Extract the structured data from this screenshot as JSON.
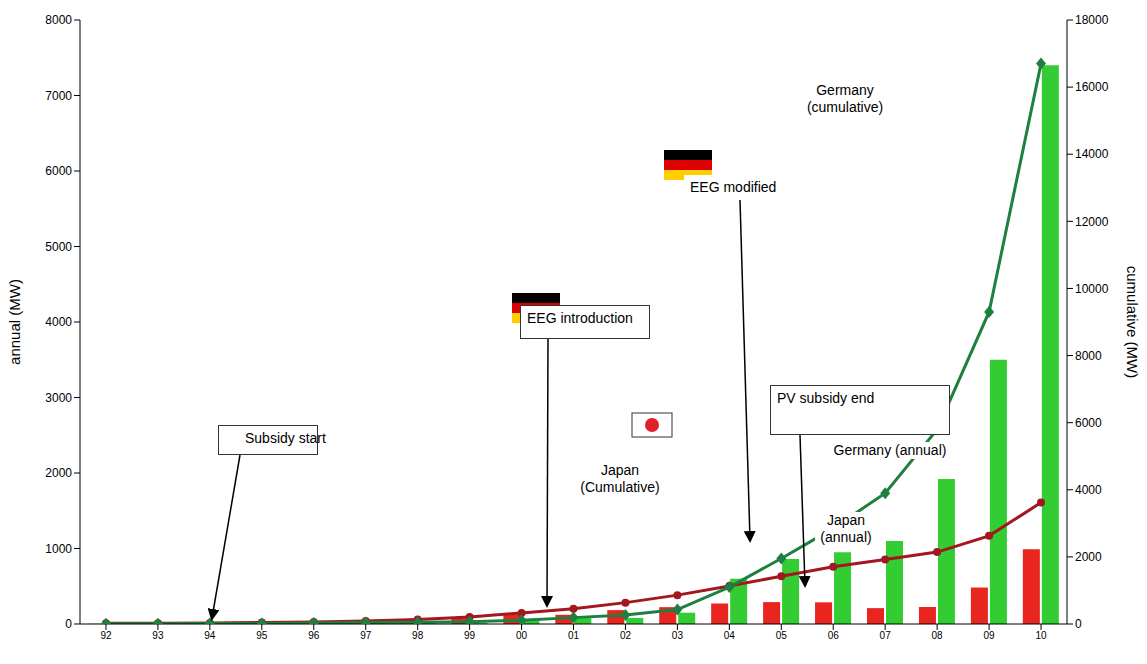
{
  "chart_data": {
    "type": "bar",
    "categories": [
      "92",
      "93",
      "94",
      "95",
      "96",
      "97",
      "98",
      "99",
      "00",
      "01",
      "02",
      "03",
      "04",
      "05",
      "06",
      "07",
      "08",
      "09",
      "10"
    ],
    "series": [
      {
        "name": "Japan (annual)",
        "type": "bar",
        "color": "#e8251f",
        "values": [
          2,
          5,
          7,
          12,
          17,
          31,
          42,
          76,
          121,
          122,
          184,
          223,
          272,
          290,
          287,
          210,
          225,
          483,
          990
        ]
      },
      {
        "name": "Germany (annual)",
        "type": "bar",
        "color": "#33cc33",
        "values": [
          3,
          3,
          2,
          5,
          10,
          12,
          12,
          12,
          40,
          78,
          80,
          150,
          600,
          860,
          950,
          1100,
          1920,
          3500,
          7400
        ]
      },
      {
        "name": "Japan (Cumulative)",
        "type": "line",
        "axis": "y2",
        "color": "#a3171e",
        "marker": "circle",
        "values": [
          19,
          24,
          31,
          43,
          60,
          91,
          133,
          209,
          330,
          452,
          637,
          860,
          1132,
          1422,
          1708,
          1919,
          2144,
          2627,
          3618
        ]
      },
      {
        "name": "Germany (cumulative)",
        "type": "line",
        "axis": "y2",
        "color": "#1e8040",
        "marker": "diamond",
        "values": [
          6,
          9,
          12,
          18,
          28,
          42,
          54,
          70,
          110,
          190,
          270,
          430,
          1100,
          1950,
          2850,
          3900,
          5800,
          9300,
          16700
        ]
      }
    ],
    "ylabel": "annual (MW)",
    "y2label": "cumulative (MW)",
    "ylim": [
      0,
      8000
    ],
    "yticks": [
      0,
      1000,
      2000,
      3000,
      4000,
      5000,
      6000,
      7000,
      8000
    ],
    "y2lim": [
      0,
      18000
    ],
    "y2ticks": [
      0,
      2000,
      4000,
      6000,
      8000,
      10000,
      12000,
      14000,
      16000,
      18000
    ],
    "annotations": [
      "Subsidy start",
      "EEG introduction",
      "PV subsidy end",
      "EEG modified"
    ],
    "grid": false
  }
}
